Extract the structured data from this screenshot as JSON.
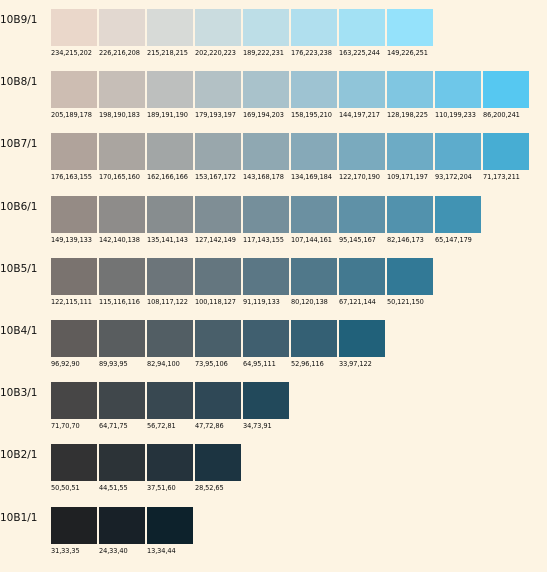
{
  "rows": [
    {
      "label": "10B9/1",
      "cells": [
        {
          "rgb": "234,215,202",
          "color": "#ead7ca"
        },
        {
          "rgb": "226,216,208",
          "color": "#e2d8d0"
        },
        {
          "rgb": "215,218,215",
          "color": "#d7dad7"
        },
        {
          "rgb": "202,220,223",
          "color": "#cadcdf"
        },
        {
          "rgb": "189,222,231",
          "color": "#bddee7"
        },
        {
          "rgb": "176,223,238",
          "color": "#b0dfee"
        },
        {
          "rgb": "163,225,244",
          "color": "#a3e1f4"
        },
        {
          "rgb": "149,226,251",
          "color": "#95e2fb"
        }
      ]
    },
    {
      "label": "10B8/1",
      "cells": [
        {
          "rgb": "205,189,178",
          "color": "#cdbdb2"
        },
        {
          "rgb": "198,190,183",
          "color": "#c6beb7"
        },
        {
          "rgb": "189,191,190",
          "color": "#bdbfbe"
        },
        {
          "rgb": "179,193,197",
          "color": "#b3c1c5"
        },
        {
          "rgb": "169,194,203",
          "color": "#a9c2cb"
        },
        {
          "rgb": "158,195,210",
          "color": "#9ec3d2"
        },
        {
          "rgb": "144,197,217",
          "color": "#90c5d9"
        },
        {
          "rgb": "128,198,225",
          "color": "#80c6e1"
        },
        {
          "rgb": "110,199,233",
          "color": "#6ec7e9"
        },
        {
          "rgb": "86,200,241",
          "color": "#56c8f1"
        }
      ]
    },
    {
      "label": "10B7/1",
      "cells": [
        {
          "rgb": "176,163,155",
          "color": "#b0a39b"
        },
        {
          "rgb": "170,165,160",
          "color": "#aaa5a0"
        },
        {
          "rgb": "162,166,166",
          "color": "#a2a6a6"
        },
        {
          "rgb": "153,167,172",
          "color": "#99a7ac"
        },
        {
          "rgb": "143,168,178",
          "color": "#8fa8b2"
        },
        {
          "rgb": "134,169,184",
          "color": "#86a9b8"
        },
        {
          "rgb": "122,170,190",
          "color": "#7aaabe"
        },
        {
          "rgb": "109,171,197",
          "color": "#6dabc5"
        },
        {
          "rgb": "93,172,204",
          "color": "#5daccc"
        },
        {
          "rgb": "71,173,211",
          "color": "#47add3"
        }
      ]
    },
    {
      "label": "10B6/1",
      "cells": [
        {
          "rgb": "149,139,133",
          "color": "#958b85"
        },
        {
          "rgb": "142,140,138",
          "color": "#8e8c8a"
        },
        {
          "rgb": "135,141,143",
          "color": "#878d8f"
        },
        {
          "rgb": "127,142,149",
          "color": "#7f8e95"
        },
        {
          "rgb": "117,143,155",
          "color": "#758f9b"
        },
        {
          "rgb": "107,144,161",
          "color": "#6b90a1"
        },
        {
          "rgb": "95,145,167",
          "color": "#5f91a7"
        },
        {
          "rgb": "82,146,173",
          "color": "#5292ad"
        },
        {
          "rgb": "65,147,179",
          "color": "#4193b3"
        }
      ]
    },
    {
      "label": "10B5/1",
      "cells": [
        {
          "rgb": "122,115,111",
          "color": "#7a736f"
        },
        {
          "rgb": "115,116,116",
          "color": "#737474"
        },
        {
          "rgb": "108,117,122",
          "color": "#6c757a"
        },
        {
          "rgb": "100,118,127",
          "color": "#64767f"
        },
        {
          "rgb": "91,119,133",
          "color": "#5b7785"
        },
        {
          "rgb": "80,120,138",
          "color": "#50788a"
        },
        {
          "rgb": "67,121,144",
          "color": "#437990"
        },
        {
          "rgb": "50,121,150",
          "color": "#327996"
        }
      ]
    },
    {
      "label": "10B4/1",
      "cells": [
        {
          "rgb": "96,92,90",
          "color": "#605c5a"
        },
        {
          "rgb": "89,93,95",
          "color": "#595d5f"
        },
        {
          "rgb": "82,94,100",
          "color": "#525e64"
        },
        {
          "rgb": "73,95,106",
          "color": "#495f6a"
        },
        {
          "rgb": "64,95,111",
          "color": "#405f6f"
        },
        {
          "rgb": "52,96,116",
          "color": "#346074"
        },
        {
          "rgb": "33,97,122",
          "color": "#21617a"
        }
      ]
    },
    {
      "label": "10B3/1",
      "cells": [
        {
          "rgb": "71,70,70",
          "color": "#474646"
        },
        {
          "rgb": "64,71,75",
          "color": "#40474b"
        },
        {
          "rgb": "56,72,81",
          "color": "#384851"
        },
        {
          "rgb": "47,72,86",
          "color": "#2f4856"
        },
        {
          "rgb": "34,73,91",
          "color": "#22495b"
        }
      ]
    },
    {
      "label": "10B2/1",
      "cells": [
        {
          "rgb": "50,50,51",
          "color": "#323233"
        },
        {
          "rgb": "44,51,55",
          "color": "#2c3337"
        },
        {
          "rgb": "37,51,60",
          "color": "#25333c"
        },
        {
          "rgb": "28,52,65",
          "color": "#1c3441"
        }
      ]
    },
    {
      "label": "10B1/1",
      "cells": [
        {
          "rgb": "31,33,35",
          "color": "#1f2123"
        },
        {
          "rgb": "24,33,40",
          "color": "#182128"
        },
        {
          "rgb": "13,34,44",
          "color": "#0d222c"
        }
      ]
    }
  ]
}
